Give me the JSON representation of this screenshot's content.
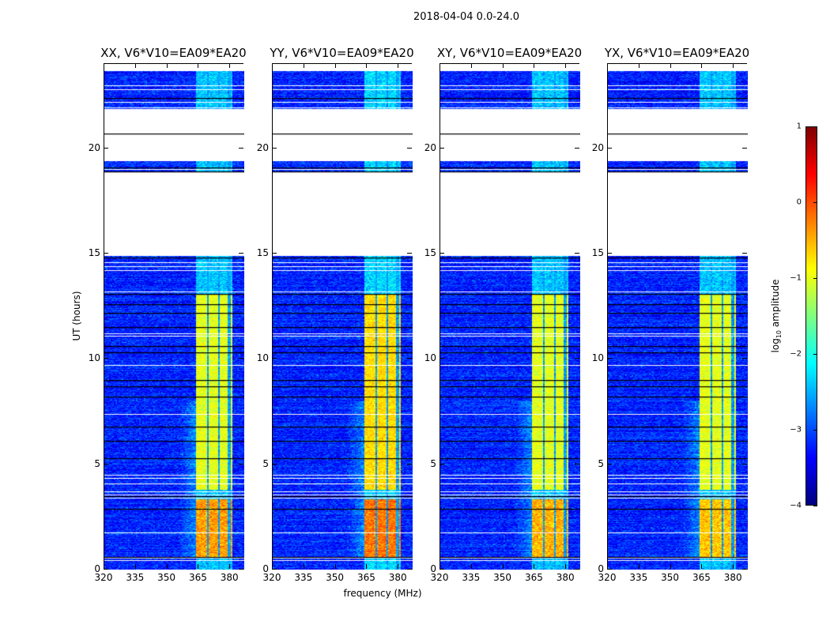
{
  "chart_data": {
    "type": "heatmap",
    "title": "2018-04-04 0.0-24.0",
    "xlabel": "frequency (MHz)",
    "ylabel": "UT (hours)",
    "xlim": [
      320,
      386.7
    ],
    "ylim": [
      0,
      24
    ],
    "xticks": [
      "320",
      "335",
      "350",
      "365",
      "380"
    ],
    "xtick_values": [
      320,
      335,
      350,
      365,
      380
    ],
    "yticks": [
      "0",
      "5",
      "10",
      "15",
      "20"
    ],
    "ytick_values": [
      0,
      5,
      10,
      15,
      20
    ],
    "colorbar": {
      "label_main": "log",
      "label_sub": "10",
      "label_rest": " amplitude",
      "range": [
        -4,
        1
      ],
      "ticks": [
        "−4",
        "−3",
        "−2",
        "−1",
        "0",
        "1"
      ],
      "tick_values": [
        -4,
        -3,
        -2,
        -1,
        0,
        1
      ],
      "colormap": "jet"
    },
    "data_intervals_hours": [
      [
        0,
        14.9
      ],
      [
        18.9,
        19.4
      ],
      [
        21.9,
        23.7
      ]
    ],
    "white_gap_hours": [
      0.55,
      0.45,
      1.75,
      3.4,
      3.55,
      3.7,
      4.1,
      4.35,
      4.5,
      7.4,
      9.7,
      11.1,
      11.2,
      13.2,
      14.2,
      14.4,
      14.6,
      21.95,
      22.2,
      22.8,
      23.0,
      19.0
    ],
    "black_line_hours": [
      0.6,
      2.9,
      3.5,
      5.3,
      6.1,
      6.8,
      8.2,
      8.7,
      9.0,
      10.3,
      10.6,
      11.5,
      12.2,
      12.6,
      13.1,
      14.8,
      18.9,
      19.1,
      20.7,
      22.4
    ],
    "background_level": -3.2,
    "rfi_band_mhz": [
      363,
      381
    ],
    "rfi_band_gaps_mhz": [
      [
        368.6,
        369.6
      ],
      [
        373.6,
        374.6
      ],
      [
        378.6,
        379.6
      ]
    ],
    "series": [
      {
        "name": "XX, V6*V10=EA09*EA20",
        "band_level_0_3.4h": -0.4,
        "band_level_3.8_13h": -1.0,
        "band_level_other": -2.4
      },
      {
        "name": "YY, V6*V10=EA09*EA20",
        "band_level_0_3.4h": -0.2,
        "band_level_3.8_13h": -0.7,
        "band_level_other": -2.3
      },
      {
        "name": "XY, V6*V10=EA09*EA20",
        "band_level_0_3.4h": -0.5,
        "band_level_3.8_13h": -1.0,
        "band_level_other": -2.4
      },
      {
        "name": "YX, V6*V10=EA09*EA20",
        "band_level_0_3.4h": -0.6,
        "band_level_3.8_13h": -1.0,
        "band_level_other": -2.4
      }
    ]
  }
}
